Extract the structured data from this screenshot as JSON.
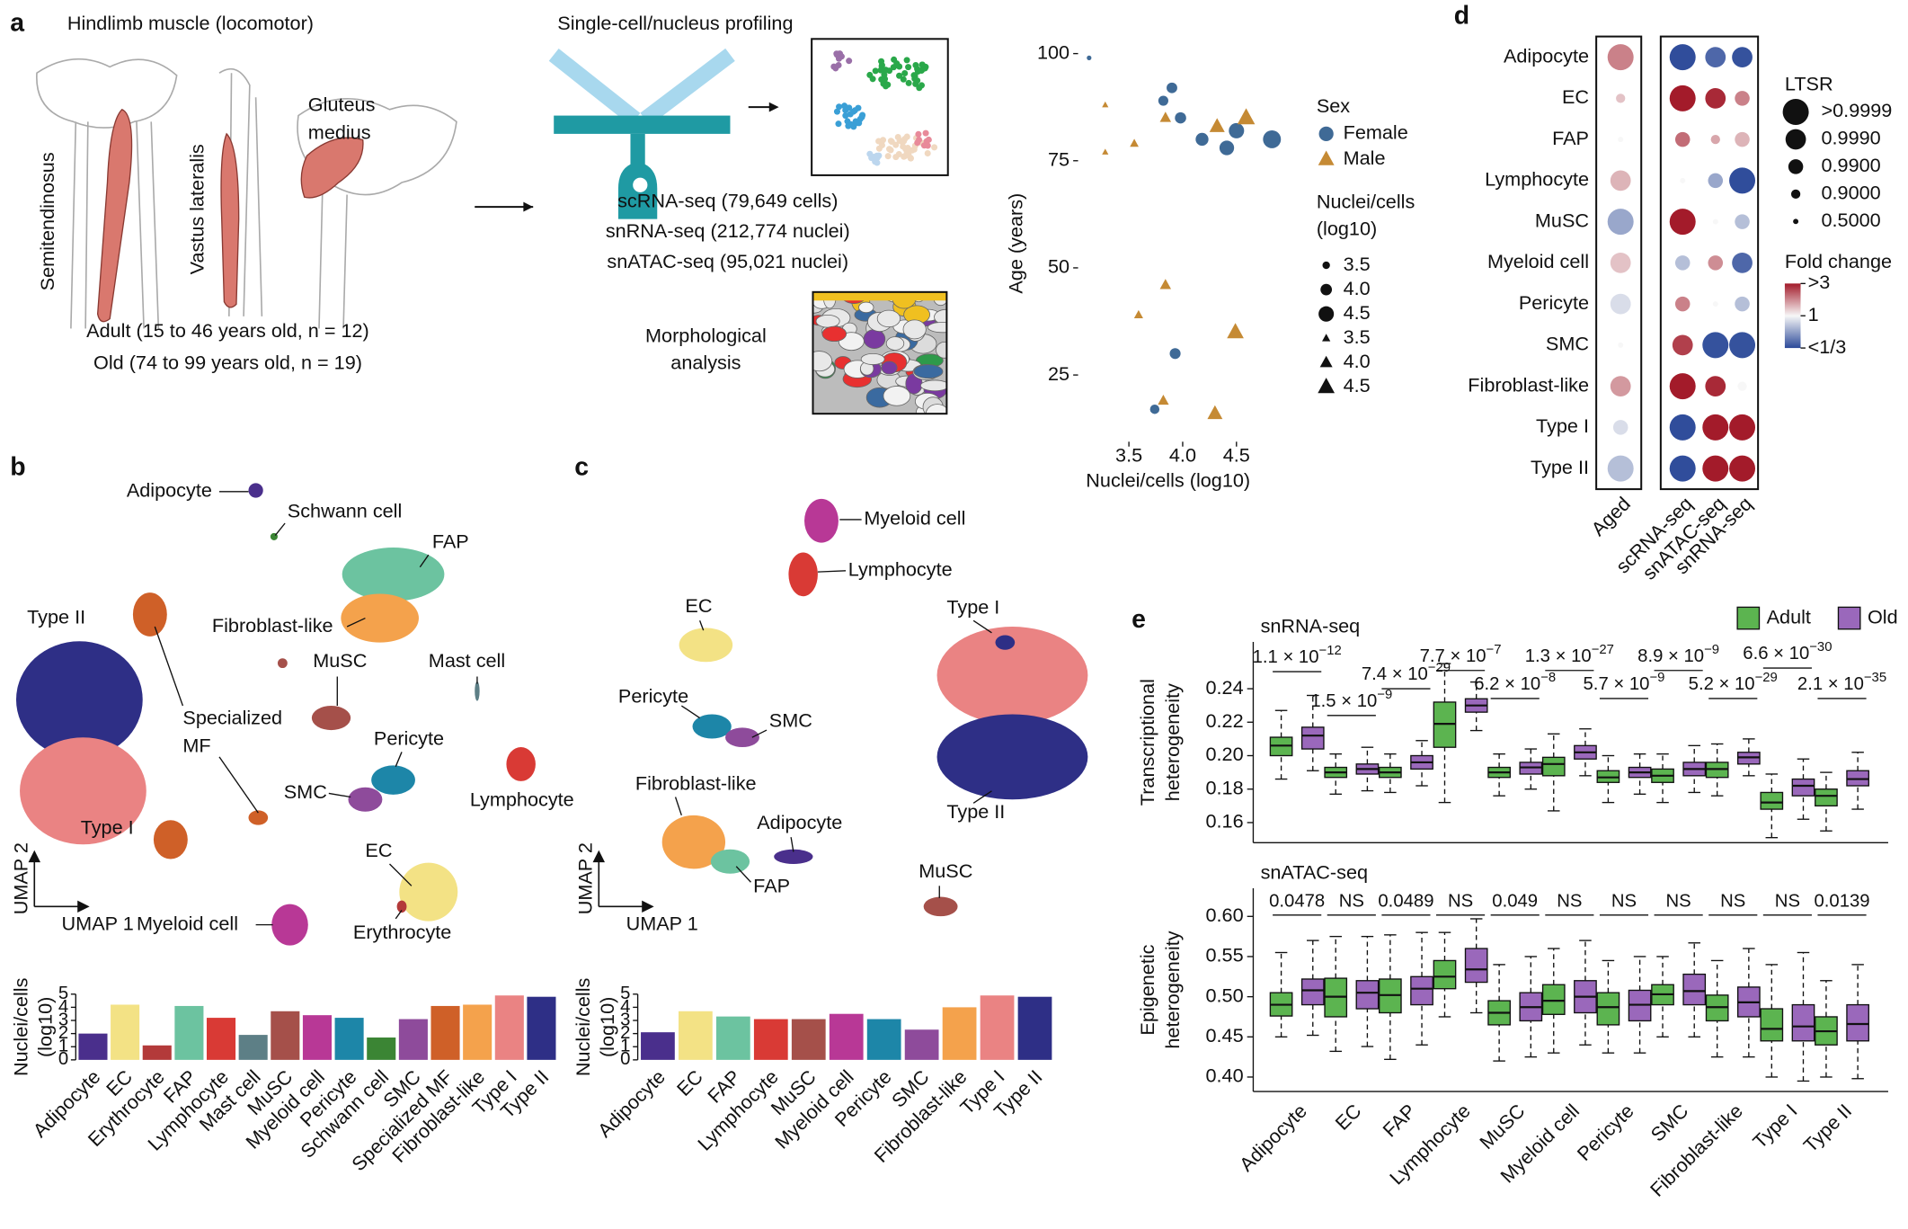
{
  "figure": {
    "panel_labels": [
      "a",
      "b",
      "c",
      "d",
      "e"
    ],
    "a": {
      "title": "Hindlimb muscle (locomotor)",
      "muscles": [
        "Semitendinosus",
        "Vastus lateralis"
      ],
      "gluteus": [
        "Gluteus",
        "medius"
      ],
      "cohorts": [
        "Adult (15 to 46 years old, n = 12)",
        "Old (74 to 99 years old, n = 19)"
      ],
      "profiling_title": "Single-cell/nucleus profiling",
      "datasets": [
        "scRNA-seq (79,649 cells)",
        "snRNA-seq (212,774 nuclei)",
        "snATAC-seq (95,021 nuclei)"
      ],
      "morphology": [
        "Morphological",
        "analysis"
      ]
    },
    "b": {
      "umap_labels": [
        "Adipocyte",
        "Schwann cell",
        "FAP",
        "Fibroblast-like",
        "Type II",
        "Specialized",
        "MF",
        "Mast cell",
        "MuSC",
        "Pericyte",
        "SMC",
        "Lymphocyte",
        "Type I",
        "EC",
        "Erythrocyte",
        "Myeloid cell"
      ],
      "umap_axes": [
        "UMAP 1",
        "UMAP 2"
      ]
    },
    "c": {
      "umap_labels": [
        "Myeloid cell",
        "Lymphocyte",
        "EC",
        "Type I",
        "Pericyte",
        "SMC",
        "Fibroblast-like",
        "Adipocyte",
        "Type II",
        "FAP",
        "MuSC"
      ],
      "umap_axes": [
        "UMAP 1",
        "UMAP 2"
      ]
    }
  },
  "chart_data": [
    {
      "type": "scatter",
      "xlabel": "Nuclei/cells (log10)",
      "ylabel": "Age (years)",
      "xlim": [
        3.05,
        4.95
      ],
      "ylim": [
        10,
        102
      ],
      "xticks": [
        3.5,
        {
          "value": 4,
          "label": "4.0"
        },
        4.5
      ],
      "yticks": [
        25,
        50,
        75,
        100
      ],
      "legend_title": "Sex",
      "size_legend_title": [
        "Nuclei/cells",
        "(log10)"
      ],
      "size_legend": [
        3.5,
        {
          "value": 4,
          "label": "4.0"
        },
        4.5
      ],
      "series": [
        {
          "name": "Female",
          "color": "#3f6a96",
          "marker": "circle",
          "x": [
            3.13,
            3.82,
            3.9,
            3.98,
            4.18,
            4.41,
            4.5,
            4.83,
            3.93,
            3.74
          ],
          "values": [
            99,
            89,
            92,
            85,
            80,
            78,
            82,
            80,
            30,
            17
          ]
        },
        {
          "name": "Male",
          "color": "#c58a34",
          "marker": "triangle",
          "x": [
            3.28,
            3.28,
            3.55,
            3.84,
            4.32,
            4.59,
            3.84,
            3.59,
            4.49,
            3.82,
            4.3
          ],
          "values": [
            88,
            77,
            79,
            85,
            83,
            85,
            46,
            39,
            35,
            19,
            16
          ]
        }
      ]
    },
    {
      "type": "bar",
      "ylabel": [
        "Nuclei/cells",
        "(log10)"
      ],
      "ylim": [
        0,
        5
      ],
      "yticks": [
        0,
        1,
        2,
        3,
        4,
        5
      ],
      "categories": [
        "Adipocyte",
        "EC",
        "Erythrocyte",
        "FAP",
        "Lymphocyte",
        "Mast cell",
        "MuSC",
        "Myeloid cell",
        "Pericyte",
        "Schwann cell",
        "SMC",
        "Specialized MF",
        "Fibroblast-like",
        "Type I",
        "Type II"
      ],
      "values": [
        2.0,
        4.2,
        1.1,
        4.1,
        3.2,
        1.9,
        3.7,
        3.4,
        3.2,
        1.7,
        3.1,
        4.1,
        4.2,
        4.9,
        4.8
      ],
      "colors": [
        "#4a2f8c",
        "#f3e285",
        "#b33a3a",
        "#6cc3a0",
        "#d93a35",
        "#5d7f86",
        "#a5504a",
        "#b83896",
        "#1d86a8",
        "#3b8534",
        "#8e4b9b",
        "#cf6028",
        "#f4a24c",
        "#ea8383",
        "#2e2f86"
      ]
    },
    {
      "type": "bar",
      "ylabel": [
        "Nuclei/cells",
        "(log10)"
      ],
      "ylim": [
        0,
        5
      ],
      "yticks": [
        0,
        1,
        2,
        3,
        4,
        5
      ],
      "categories": [
        "Adipocyte",
        "EC",
        "FAP",
        "Lymphocyte",
        "MuSC",
        "Myeloid cell",
        "Pericyte",
        "SMC",
        "Fibroblast-like",
        "Type I",
        "Type II"
      ],
      "values": [
        2.1,
        3.7,
        3.3,
        3.1,
        3.1,
        3.5,
        3.1,
        2.3,
        4.0,
        4.9,
        4.8
      ],
      "colors": [
        "#4a2f8c",
        "#f3e285",
        "#6cc3a0",
        "#d93a35",
        "#a5504a",
        "#b83896",
        "#1d86a8",
        "#8e4b9b",
        "#f4a24c",
        "#ea8383",
        "#2e2f86"
      ]
    },
    {
      "type": "dot",
      "rows": [
        "Adipocyte",
        "EC",
        "FAP",
        "Lymphocyte",
        "MuSC",
        "Myeloid cell",
        "Pericyte",
        "SMC",
        "Fibroblast-like",
        "Type I",
        "Type II"
      ],
      "columns": [
        "Aged",
        "scRNA-seq",
        "snATAC-seq",
        "snRNA-seq"
      ],
      "fold_change": [
        [
          1.8,
          0.34,
          0.4,
          0.35
        ],
        [
          1.3,
          3,
          2.8,
          1.8
        ],
        [
          1.0,
          2.0,
          1.5,
          1.4
        ],
        [
          1.4,
          1.0,
          0.6,
          0.34
        ],
        [
          0.6,
          3,
          1.0,
          0.7
        ],
        [
          1.3,
          0.7,
          1.7,
          0.4
        ],
        [
          0.85,
          1.8,
          1.0,
          0.7
        ],
        [
          1.0,
          2.5,
          0.35,
          0.35
        ],
        [
          1.6,
          3,
          2.8,
          1.0
        ],
        [
          0.85,
          0.34,
          3,
          3
        ],
        [
          0.7,
          0.34,
          3,
          3
        ]
      ],
      "ltsr": [
        [
          0.9999,
          0.9999,
          0.999,
          0.999
        ],
        [
          0.9,
          0.9999,
          0.999,
          0.99
        ],
        [
          0.5,
          0.99,
          0.9,
          0.99
        ],
        [
          0.999,
          0.5,
          0.99,
          0.9999
        ],
        [
          0.9999,
          0.9999,
          0.5,
          0.99
        ],
        [
          0.999,
          0.99,
          0.99,
          0.999
        ],
        [
          0.999,
          0.99,
          0.5,
          0.99
        ],
        [
          0.5,
          0.999,
          0.9999,
          0.9999
        ],
        [
          0.999,
          0.9999,
          0.999,
          0.9
        ],
        [
          0.99,
          0.9999,
          0.9999,
          0.9999
        ],
        [
          0.9999,
          0.9999,
          0.9999,
          0.9999
        ]
      ],
      "size_legend_title": "LTSR",
      "size_legend": [
        {
          "value": 0.9999,
          "label": ">0.9999"
        },
        {
          "value": 0.999,
          "label": "0.9990"
        },
        {
          "value": 0.99,
          "label": "0.9900"
        },
        {
          "value": 0.9,
          "label": "0.9000"
        },
        {
          "value": 0.5,
          "label": "0.5000"
        }
      ],
      "color_legend_title": "Fold change",
      "color_legend": [
        {
          "value": 3,
          "label": ">3"
        },
        1,
        {
          "value": 0.3333,
          "label": "<1/3"
        }
      ],
      "colors": [
        "#2c4a99",
        "#f7f7f7",
        "#a31b2a"
      ],
      "log_color": true
    },
    {
      "type": "box",
      "title": "snRNA-seq",
      "ylabel": [
        "Transcriptional",
        "heterogeneity"
      ],
      "ylim": [
        0.148,
        0.268
      ],
      "yticks": [
        0.16,
        0.18,
        {
          "value": 0.2,
          "label": "0.20"
        },
        0.22,
        0.24
      ],
      "series": [
        {
          "name": "Adult",
          "color": "#5cb450",
          "values": [
            [
              0.186,
              0.2,
              0.206,
              0.211,
              0.227
            ],
            [
              0.177,
              0.187,
              0.19,
              0.193,
              0.201
            ],
            [
              0.178,
              0.187,
              0.19,
              0.193,
              0.201
            ],
            [
              0.172,
              0.205,
              0.219,
              0.232,
              0.255
            ],
            [
              0.176,
              0.187,
              0.19,
              0.193,
              0.201
            ],
            [
              0.167,
              0.188,
              0.195,
              0.199,
              0.213
            ],
            [
              0.172,
              0.184,
              0.187,
              0.191,
              0.2
            ],
            [
              0.172,
              0.184,
              0.188,
              0.192,
              0.201
            ],
            [
              0.176,
              0.187,
              0.192,
              0.196,
              0.207
            ],
            [
              0.151,
              0.168,
              0.172,
              0.178,
              0.189
            ],
            [
              0.155,
              0.17,
              0.176,
              0.18,
              0.19
            ]
          ]
        },
        {
          "name": "Old",
          "color": "#9a68bb",
          "values": [
            [
              0.191,
              0.204,
              0.212,
              0.217,
              0.236
            ],
            [
              0.179,
              0.189,
              0.192,
              0.195,
              0.205
            ],
            [
              0.182,
              0.192,
              0.196,
              0.2,
              0.209
            ],
            [
              0.215,
              0.226,
              0.23,
              0.234,
              0.244
            ],
            [
              0.18,
              0.189,
              0.193,
              0.196,
              0.204
            ],
            [
              0.188,
              0.198,
              0.202,
              0.206,
              0.216
            ],
            [
              0.177,
              0.187,
              0.19,
              0.193,
              0.201
            ],
            [
              0.178,
              0.188,
              0.192,
              0.196,
              0.206
            ],
            [
              0.188,
              0.195,
              0.199,
              0.202,
              0.21
            ],
            [
              0.162,
              0.176,
              0.182,
              0.186,
              0.198
            ],
            [
              0.168,
              0.182,
              0.186,
              0.191,
              0.202
            ]
          ]
        }
      ],
      "annotations": [
        {
          "base": "1.1 × 10",
          "exp": "−12"
        },
        {
          "base": "1.5 × 10",
          "exp": "−9"
        },
        {
          "base": "7.4 × 10",
          "exp": "−29"
        },
        {
          "base": "7.7 × 10",
          "exp": "−7"
        },
        {
          "base": "6.2 × 10",
          "exp": "−8"
        },
        {
          "base": "1.3 × 10",
          "exp": "−27"
        },
        {
          "base": "5.7 × 10",
          "exp": "−9"
        },
        {
          "base": "8.9 × 10",
          "exp": "−9"
        },
        {
          "base": "5.2 × 10",
          "exp": "−29"
        },
        {
          "base": "6.6 × 10",
          "exp": "−30"
        },
        {
          "base": "2.1 × 10",
          "exp": "−35"
        }
      ]
    },
    {
      "type": "box",
      "title": "snATAC-seq",
      "ylabel": [
        "Epigenetic",
        "heterogeneity"
      ],
      "ylim": [
        0.382,
        0.635
      ],
      "yticks": [
        {
          "value": 0.4,
          "label": "0.40"
        },
        0.45,
        {
          "value": 0.5,
          "label": "0.50"
        },
        0.55,
        {
          "value": 0.6,
          "label": "0.60"
        }
      ],
      "categories": [
        "Adipocyte",
        "EC",
        "FAP",
        "Lymphocyte",
        "MuSC",
        "Myeloid cell",
        "Pericyte",
        "SMC",
        "Fibroblast-like",
        "Type I",
        "Type II"
      ],
      "series": [
        {
          "color": "#5cb450",
          "values": [
            [
              0.45,
              0.476,
              0.49,
              0.505,
              0.555
            ],
            [
              0.432,
              0.475,
              0.5,
              0.523,
              0.575
            ],
            [
              0.422,
              0.48,
              0.502,
              0.522,
              0.577
            ],
            [
              0.475,
              0.51,
              0.525,
              0.545,
              0.58
            ],
            [
              0.42,
              0.465,
              0.48,
              0.495,
              0.54
            ],
            [
              0.43,
              0.478,
              0.495,
              0.515,
              0.56
            ],
            [
              0.43,
              0.465,
              0.487,
              0.505,
              0.545
            ],
            [
              0.45,
              0.49,
              0.503,
              0.515,
              0.55
            ],
            [
              0.425,
              0.47,
              0.487,
              0.502,
              0.545
            ],
            [
              0.4,
              0.445,
              0.46,
              0.485,
              0.54
            ],
            [
              0.4,
              0.44,
              0.457,
              0.475,
              0.52
            ]
          ]
        },
        {
          "color": "#9a68bb",
          "values": [
            [
              0.452,
              0.49,
              0.508,
              0.522,
              0.57
            ],
            [
              0.438,
              0.485,
              0.505,
              0.52,
              0.575
            ],
            [
              0.44,
              0.49,
              0.51,
              0.525,
              0.58
            ],
            [
              0.48,
              0.518,
              0.534,
              0.56,
              0.597
            ],
            [
              0.425,
              0.47,
              0.487,
              0.505,
              0.55
            ],
            [
              0.44,
              0.48,
              0.5,
              0.52,
              0.57
            ],
            [
              0.43,
              0.47,
              0.49,
              0.508,
              0.55
            ],
            [
              0.45,
              0.49,
              0.507,
              0.528,
              0.567
            ],
            [
              0.425,
              0.475,
              0.493,
              0.512,
              0.56
            ],
            [
              0.395,
              0.445,
              0.463,
              0.49,
              0.555
            ],
            [
              0.398,
              0.445,
              0.466,
              0.49,
              0.54
            ]
          ]
        }
      ],
      "annotations": [
        "0.0478",
        "NS",
        "0.0489",
        "NS",
        "0.049",
        "NS",
        "NS",
        "NS",
        "NS",
        "NS",
        "0.0139"
      ]
    }
  ]
}
